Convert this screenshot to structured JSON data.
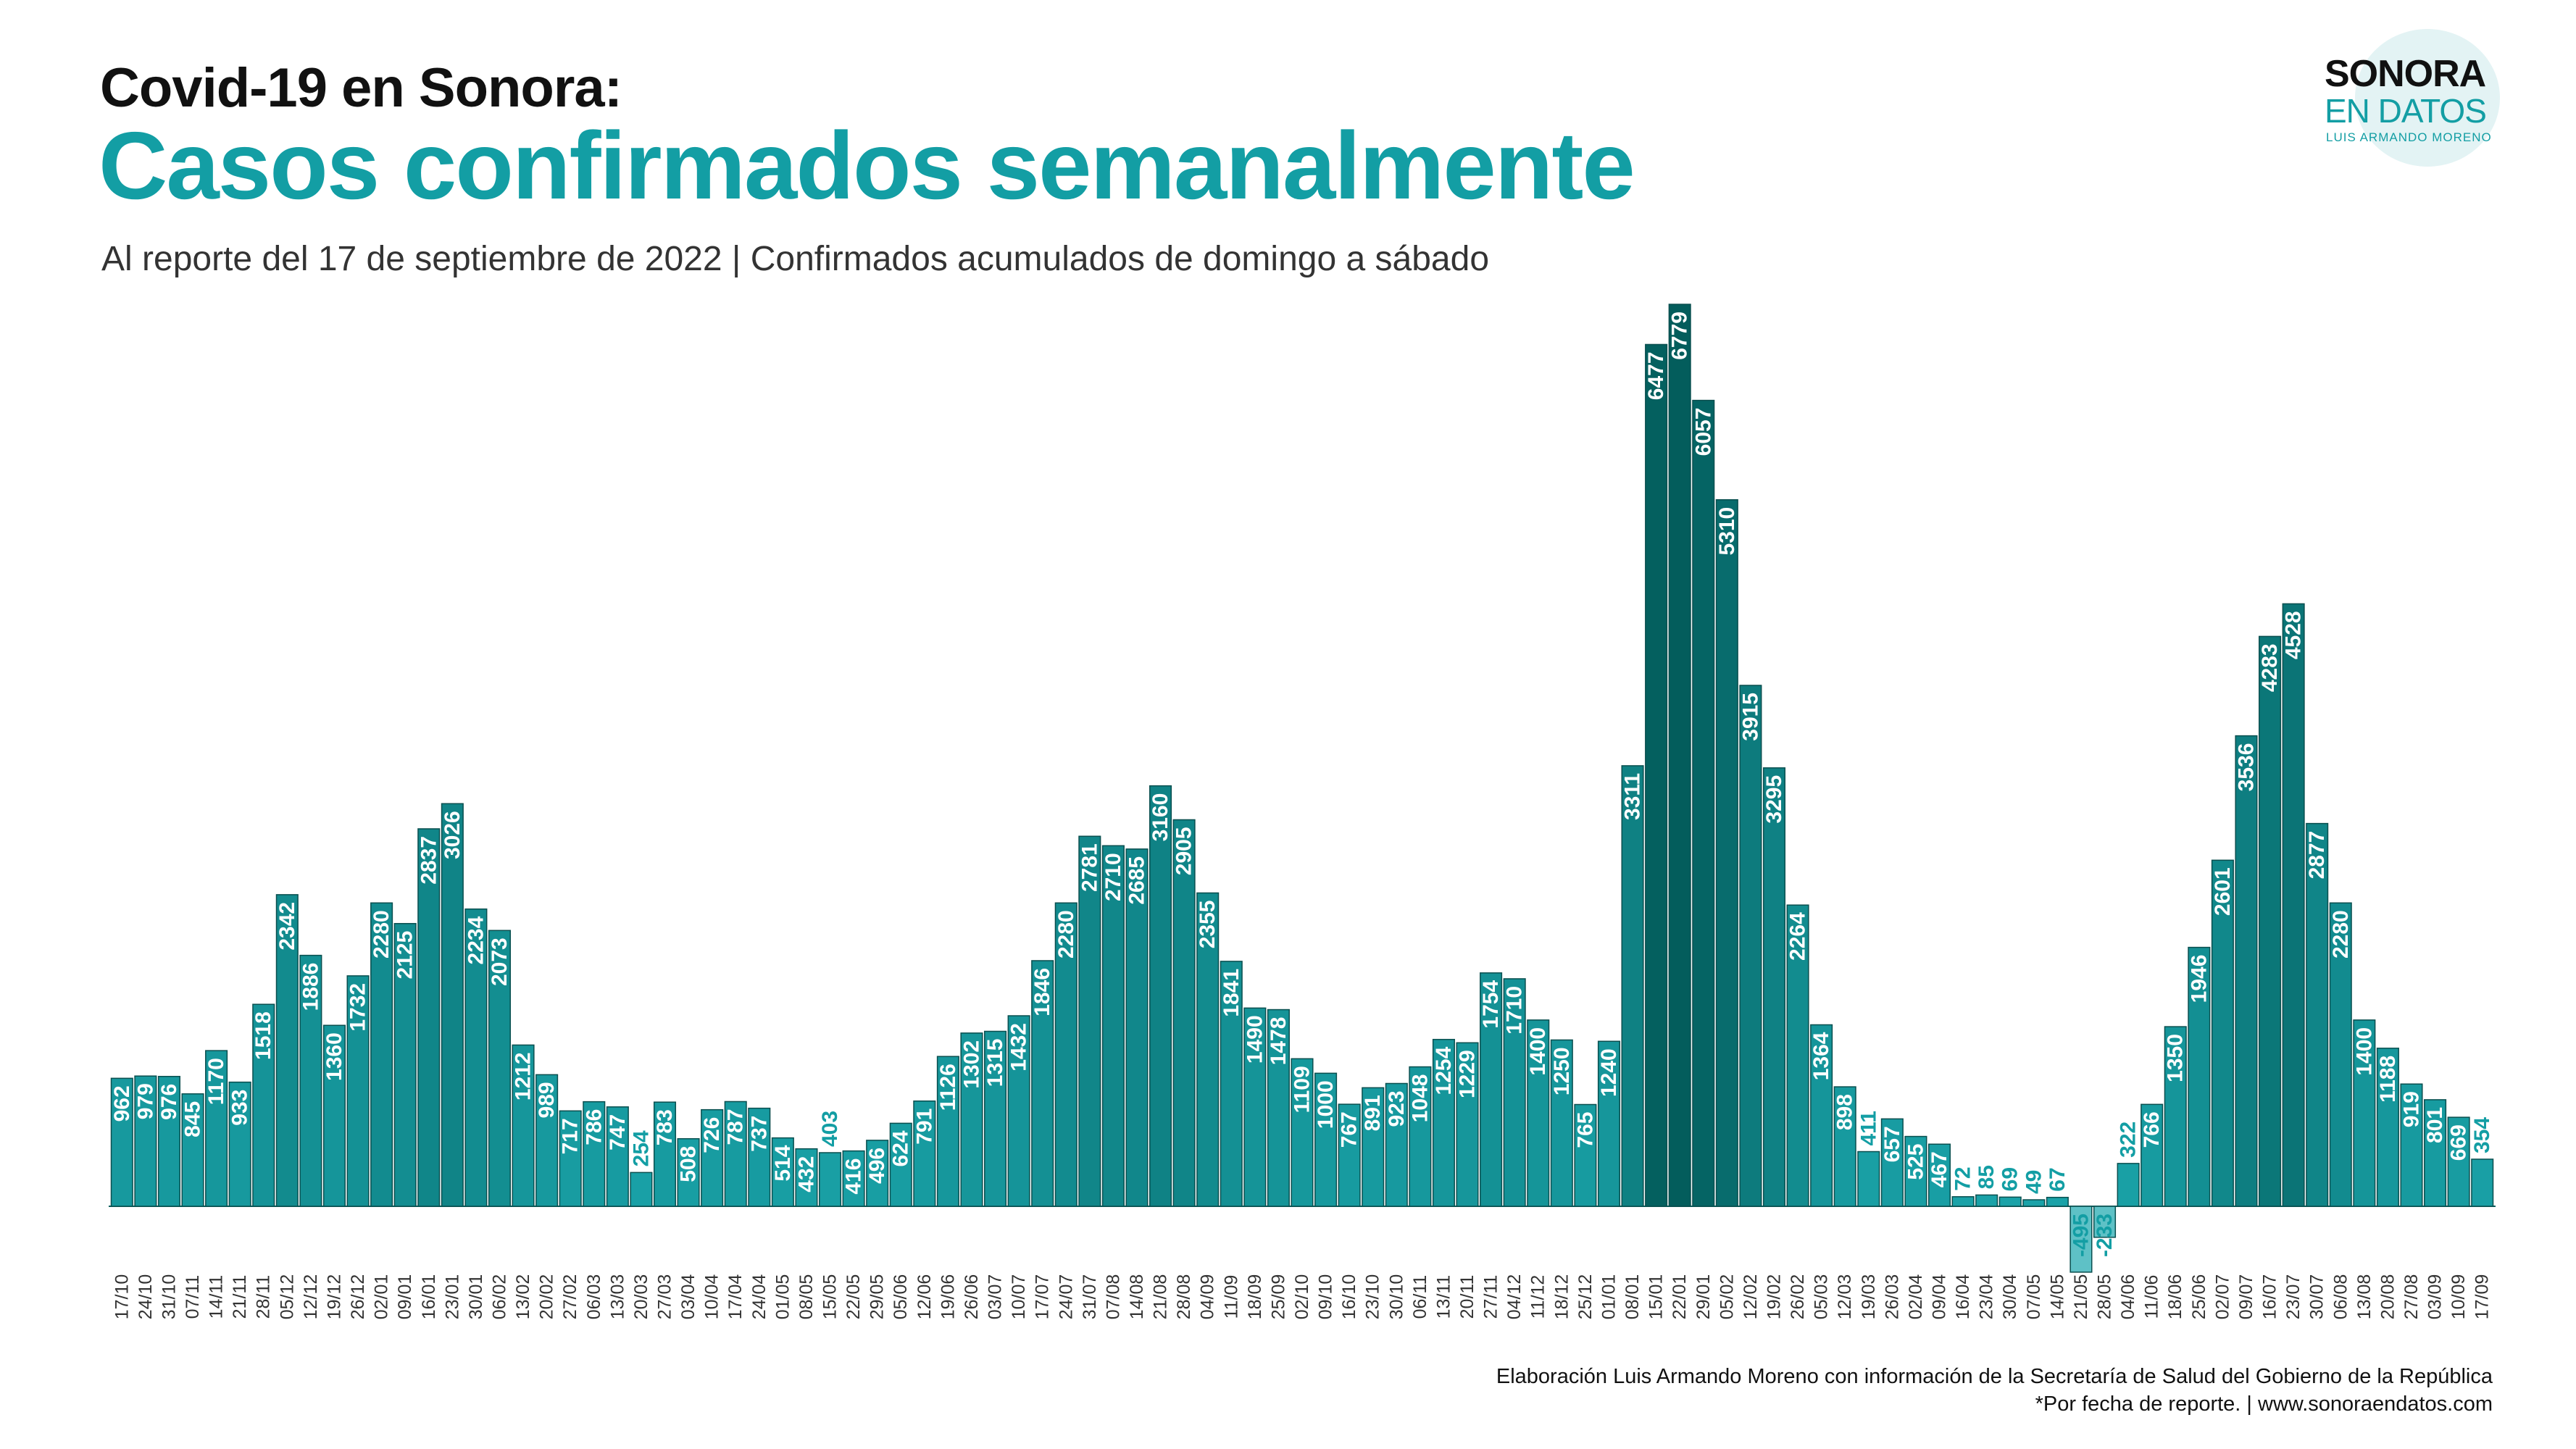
{
  "header": {
    "line1": "Covid-19  en Sonora:",
    "line2": "Casos confirmados semanalmente",
    "subtitle": "Al reporte del 17 de septiembre de 2022 | Confirmados acumulados de domingo a sábado"
  },
  "logo": {
    "line1": "SONORA",
    "line2": "EN DATOS",
    "line3": "LUIS ARMANDO MORENO"
  },
  "footer": {
    "line1": "Elaboración Luis Armando Moreno con información de la Secretaría de Salud del Gobierno de la República",
    "line2": "*Por fecha de reporte. | www.sonoraendatos.com"
  },
  "colors": {
    "title_accent": "#139ea4",
    "bar_base": "#1aa3a9",
    "bar_dark": "#035d5c",
    "bar_negative": "#5ec1c6"
  },
  "chart_data": {
    "type": "bar",
    "title": "Casos confirmados semanalmente",
    "subtitle": "Al reporte del 17 de septiembre de 2022 | Confirmados acumulados de domingo a sábado",
    "xlabel": "",
    "ylabel": "",
    "grid": false,
    "legend": "none",
    "ylim": [
      -600,
      7000
    ],
    "categories": [
      "17/10",
      "24/10",
      "31/10",
      "07/11",
      "14/11",
      "21/11",
      "28/11",
      "05/12",
      "12/12",
      "19/12",
      "26/12",
      "02/01",
      "09/01",
      "16/01",
      "23/01",
      "30/01",
      "06/02",
      "13/02",
      "20/02",
      "27/02",
      "06/03",
      "13/03",
      "20/03",
      "27/03",
      "03/04",
      "10/04",
      "17/04",
      "24/04",
      "01/05",
      "08/05",
      "15/05",
      "22/05",
      "29/05",
      "05/06",
      "12/06",
      "19/06",
      "26/06",
      "03/07",
      "10/07",
      "17/07",
      "24/07",
      "31/07",
      "07/08",
      "14/08",
      "21/08",
      "28/08",
      "04/09",
      "11/09",
      "18/09",
      "25/09",
      "02/10",
      "09/10",
      "16/10",
      "23/10",
      "30/10",
      "06/11",
      "13/11",
      "20/11",
      "27/11",
      "04/12",
      "11/12",
      "18/12",
      "25/12",
      "01/01",
      "08/01",
      "15/01",
      "22/01",
      "29/01",
      "05/02",
      "12/02",
      "19/02",
      "26/02",
      "05/03",
      "12/03",
      "19/03",
      "26/03",
      "02/04",
      "09/04",
      "16/04",
      "23/04",
      "30/04",
      "07/05",
      "14/05",
      "21/05",
      "28/05",
      "04/06",
      "11/06",
      "18/06",
      "25/06",
      "02/07",
      "09/07",
      "16/07",
      "23/07",
      "30/07",
      "06/08",
      "13/08",
      "20/08",
      "27/08",
      "03/09",
      "10/09",
      "17/09"
    ],
    "values": [
      962,
      979,
      976,
      845,
      1170,
      933,
      1518,
      2342,
      1886,
      1360,
      1732,
      2280,
      2125,
      2837,
      3026,
      2234,
      2073,
      1212,
      989,
      717,
      786,
      747,
      254,
      783,
      508,
      726,
      787,
      737,
      514,
      432,
      403,
      416,
      496,
      624,
      791,
      1126,
      1302,
      1315,
      1432,
      1846,
      2280,
      2781,
      2710,
      2685,
      3160,
      2905,
      2355,
      1841,
      1490,
      1478,
      1109,
      1000,
      767,
      891,
      923,
      1048,
      1254,
      1229,
      1754,
      1710,
      1400,
      1250,
      765,
      1240,
      3311,
      6477,
      6779,
      6057,
      5310,
      3915,
      3295,
      2264,
      1364,
      898,
      411,
      657,
      525,
      467,
      72,
      85,
      69,
      49,
      67,
      -495,
      -233,
      322,
      766,
      1350,
      1946,
      2601,
      3536,
      4283,
      4528,
      2877,
      2280,
      1400,
      1188,
      919,
      801,
      669,
      354
    ]
  }
}
